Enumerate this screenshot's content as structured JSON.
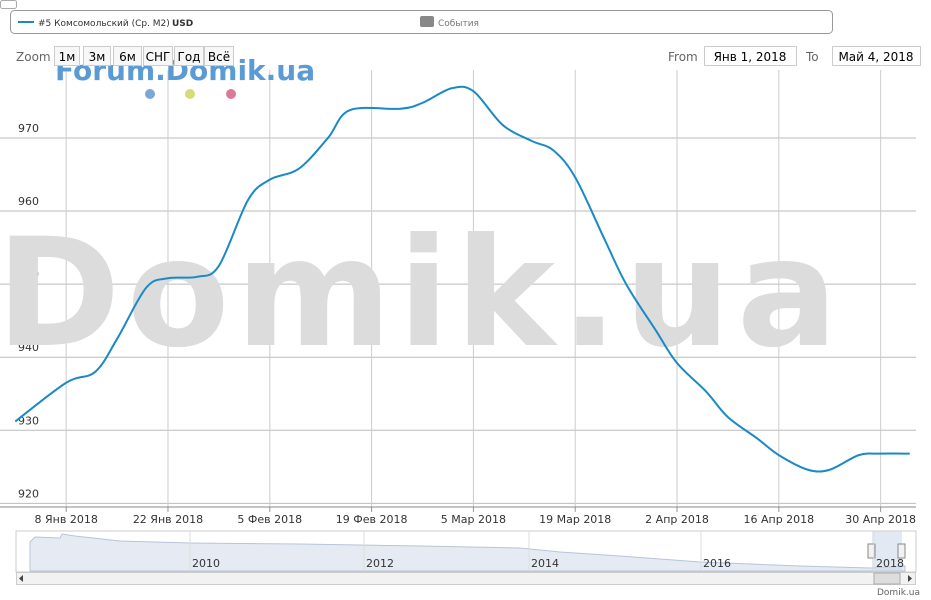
{
  "chart_data": {
    "type": "line",
    "series": [
      {
        "name": "#5 Комсомольский (Ср. М2)",
        "unit": "USD",
        "color": "#1a8ac6",
        "x": [
          "2018-01-01",
          "2018-01-08",
          "2018-01-12",
          "2018-01-15",
          "2018-01-19",
          "2018-01-22",
          "2018-01-26",
          "2018-01-29",
          "2018-02-02",
          "2018-02-05",
          "2018-02-09",
          "2018-02-13",
          "2018-02-16",
          "2018-02-23",
          "2018-02-26",
          "2018-03-02",
          "2018-03-05",
          "2018-03-09",
          "2018-03-13",
          "2018-03-16",
          "2018-03-19",
          "2018-03-23",
          "2018-03-26",
          "2018-03-30",
          "2018-04-02",
          "2018-04-06",
          "2018-04-09",
          "2018-04-13",
          "2018-04-16",
          "2018-04-20",
          "2018-04-23",
          "2018-04-27",
          "2018-04-30",
          "2018-05-04"
        ],
        "values": [
          931.2,
          936.5,
          938,
          942.5,
          949.5,
          950.8,
          951,
          952.5,
          961.5,
          964.3,
          965.8,
          970,
          973.8,
          974,
          974.8,
          976.8,
          976.4,
          971.8,
          969.6,
          968.3,
          964.6,
          956.2,
          950,
          943.8,
          939.2,
          935.3,
          931.8,
          928.9,
          926.6,
          924.6,
          924.6,
          926.6,
          926.8,
          926.8
        ]
      }
    ],
    "xlim": [
      "2017-12-31",
      "2018-05-05"
    ],
    "xticks": [
      {
        "value": "2018-01-08",
        "label": "8 Янв 2018"
      },
      {
        "value": "2018-01-22",
        "label": "22 Янв 2018"
      },
      {
        "value": "2018-02-05",
        "label": "5 Фев 2018"
      },
      {
        "value": "2018-02-19",
        "label": "19 Фев 2018"
      },
      {
        "value": "2018-03-05",
        "label": "5 Мар 2018"
      },
      {
        "value": "2018-03-19",
        "label": "19 Мар 2018"
      },
      {
        "value": "2018-04-02",
        "label": "2 Апр 2018"
      },
      {
        "value": "2018-04-16",
        "label": "16 Апр 2018"
      },
      {
        "value": "2018-04-30",
        "label": "30 Апр 2018"
      }
    ],
    "ylim": [
      919.5,
      979.3
    ],
    "yticks": [
      920,
      930,
      940,
      950,
      960,
      970
    ],
    "grid": true,
    "events_legend": "События",
    "watermark": "Domik.ua",
    "watermark_top": "Forum.Domik.ua",
    "range_selector": {
      "zoom": "Zoom",
      "buttons": [
        "1м",
        "3м",
        "6м",
        "СНГ",
        "Год",
        "Всё"
      ],
      "from_label": "From",
      "from": "Янв 1, 2018",
      "to_label": "To",
      "to": "Май 4, 2018"
    },
    "navigator_labels": [
      "2010",
      "2012",
      "2014",
      "2016",
      "2018"
    ],
    "credits": "Domik.ua"
  }
}
